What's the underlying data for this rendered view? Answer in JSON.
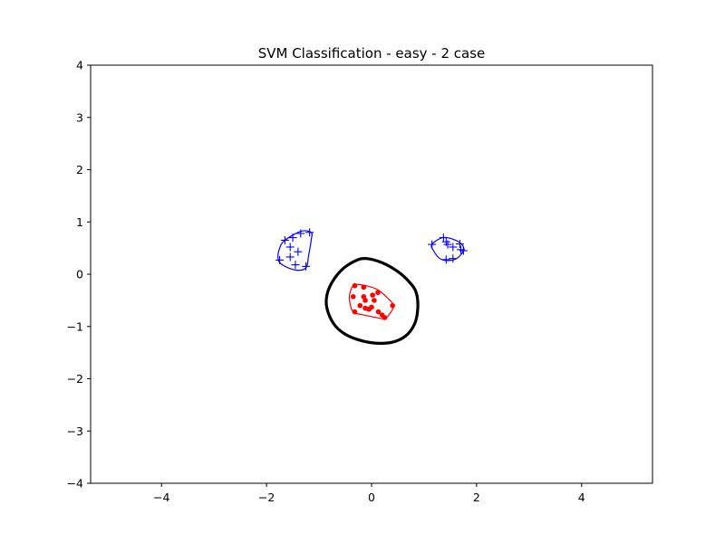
{
  "chart_data": {
    "type": "scatter",
    "title": "SVM Classification - easy - 2 case",
    "xlabel": "",
    "ylabel": "",
    "xlim": [
      -5.35,
      5.35
    ],
    "ylim": [
      -4,
      4
    ],
    "grid": false,
    "legend": "none",
    "x_ticks": [
      -4,
      -2,
      0,
      2,
      4
    ],
    "x_tick_labels": [
      "−4",
      "−2",
      "0",
      "2",
      "4"
    ],
    "y_ticks": [
      -4,
      -3,
      -2,
      -1,
      0,
      1,
      2,
      3,
      4
    ],
    "y_tick_labels": [
      "−4",
      "−3",
      "−2",
      "−1",
      "0",
      "1",
      "2",
      "3",
      "4"
    ],
    "colors": {
      "positive": "#0000ff",
      "negative": "#ff0000",
      "boundary": "#000000"
    },
    "series": [
      {
        "marker": "plus",
        "color": "#0000ff",
        "points": [
          [
            -1.65,
            0.65
          ],
          [
            -1.5,
            0.7
          ],
          [
            -1.35,
            0.78
          ],
          [
            -1.18,
            0.8
          ],
          [
            -1.55,
            0.52
          ],
          [
            -1.4,
            0.43
          ],
          [
            -1.55,
            0.33
          ],
          [
            -1.45,
            0.18
          ],
          [
            -1.75,
            0.27
          ],
          [
            -1.25,
            0.15
          ],
          [
            1.15,
            0.57
          ],
          [
            1.37,
            0.7
          ],
          [
            1.42,
            0.62
          ],
          [
            1.45,
            0.57
          ],
          [
            1.55,
            0.52
          ],
          [
            1.68,
            0.58
          ],
          [
            1.7,
            0.47
          ],
          [
            1.75,
            0.45
          ],
          [
            1.42,
            0.28
          ],
          [
            1.55,
            0.3
          ]
        ]
      },
      {
        "marker": "dot",
        "color": "#ff0000",
        "points": [
          [
            -0.32,
            -0.22
          ],
          [
            -0.15,
            -0.25
          ],
          [
            -0.35,
            -0.43
          ],
          [
            -0.15,
            -0.43
          ],
          [
            -0.12,
            -0.5
          ],
          [
            0.02,
            -0.4
          ],
          [
            0.12,
            -0.35
          ],
          [
            0.05,
            -0.5
          ],
          [
            -0.22,
            -0.6
          ],
          [
            -0.12,
            -0.65
          ],
          [
            -0.05,
            -0.67
          ],
          [
            0.0,
            -0.63
          ],
          [
            0.13,
            -0.72
          ],
          [
            0.2,
            -0.78
          ],
          [
            0.25,
            -0.83
          ],
          [
            0.4,
            -0.6
          ],
          [
            -0.32,
            -0.72
          ]
        ]
      }
    ],
    "contours": [
      {
        "color": "#0000ff",
        "width": 1.2,
        "points": [
          [
            -1.65,
            0.65
          ],
          [
            -1.35,
            0.82
          ],
          [
            -1.15,
            0.8
          ],
          [
            -1.15,
            0.65
          ],
          [
            -1.2,
            0.35
          ],
          [
            -1.25,
            0.12
          ],
          [
            -1.45,
            0.08
          ],
          [
            -1.7,
            0.18
          ],
          [
            -1.78,
            0.3
          ],
          [
            -1.75,
            0.5
          ]
        ]
      },
      {
        "color": "#0000ff",
        "width": 1.2,
        "points": [
          [
            1.15,
            0.57
          ],
          [
            1.35,
            0.7
          ],
          [
            1.55,
            0.67
          ],
          [
            1.72,
            0.57
          ],
          [
            1.75,
            0.45
          ],
          [
            1.62,
            0.3
          ],
          [
            1.45,
            0.26
          ],
          [
            1.3,
            0.3
          ],
          [
            1.18,
            0.45
          ]
        ]
      },
      {
        "color": "#ff0000",
        "width": 1.2,
        "points": [
          [
            -0.32,
            -0.2
          ],
          [
            -0.1,
            -0.22
          ],
          [
            0.12,
            -0.3
          ],
          [
            0.3,
            -0.45
          ],
          [
            0.42,
            -0.6
          ],
          [
            0.35,
            -0.75
          ],
          [
            0.25,
            -0.85
          ],
          [
            0.05,
            -0.82
          ],
          [
            -0.15,
            -0.78
          ],
          [
            -0.35,
            -0.72
          ],
          [
            -0.42,
            -0.5
          ],
          [
            -0.4,
            -0.32
          ]
        ]
      },
      {
        "color": "#000000",
        "width": 3.2,
        "points": [
          [
            -0.3,
            0.26
          ],
          [
            -0.1,
            0.3
          ],
          [
            0.2,
            0.22
          ],
          [
            0.5,
            0.05
          ],
          [
            0.72,
            -0.15
          ],
          [
            0.85,
            -0.35
          ],
          [
            0.88,
            -0.65
          ],
          [
            0.82,
            -0.95
          ],
          [
            0.65,
            -1.18
          ],
          [
            0.4,
            -1.3
          ],
          [
            0.1,
            -1.32
          ],
          [
            -0.2,
            -1.27
          ],
          [
            -0.5,
            -1.15
          ],
          [
            -0.72,
            -0.95
          ],
          [
            -0.85,
            -0.65
          ],
          [
            -0.85,
            -0.4
          ],
          [
            -0.75,
            -0.15
          ],
          [
            -0.55,
            0.1
          ]
        ]
      }
    ]
  }
}
